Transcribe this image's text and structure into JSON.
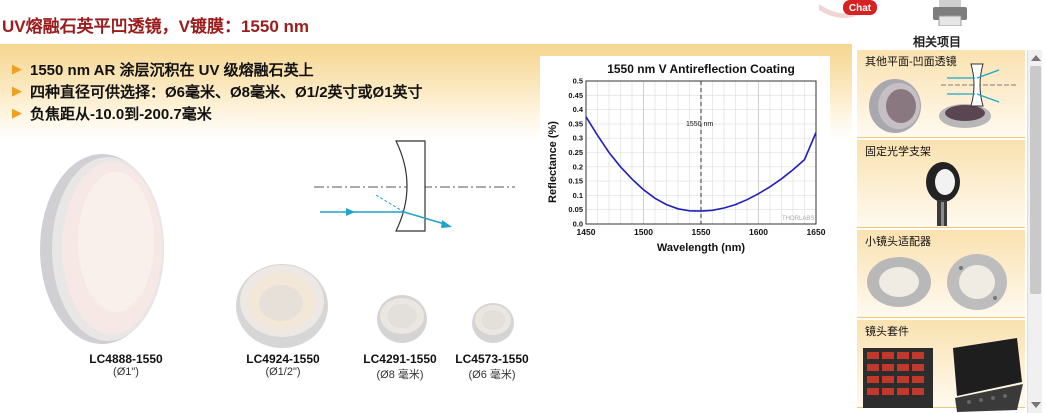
{
  "page": {
    "title": "UV熔融石英平凹透镜，V镀膜：1550 nm",
    "chat_label": "Chat",
    "related_label": "相关项目"
  },
  "features": [
    "1550 nm AR 涂层沉积在 UV 级熔融石英上",
    "四种直径可供选择：Ø6毫米、Ø8毫米、Ø1/2英寸或Ø1英寸",
    "负焦距从-10.0到-200.7毫米"
  ],
  "products": [
    {
      "name": "LC4888-1550",
      "size": "(Ø1\")"
    },
    {
      "name": "LC4924-1550",
      "size": "(Ø1/2\")"
    },
    {
      "name": "LC4291-1550",
      "size": "(Ø8 毫米)"
    },
    {
      "name": "LC4573-1550",
      "size": "(Ø6 毫米)"
    }
  ],
  "sidebar": {
    "items": [
      {
        "label": "其他平面-凹面透镜"
      },
      {
        "label": "固定光学支架"
      },
      {
        "label": "小镜头适配器"
      },
      {
        "label": "镜头套件"
      }
    ]
  },
  "chart_data": {
    "type": "line",
    "title": "1550 nm V Antireflection Coating",
    "xlabel": "Wavelength (nm)",
    "ylabel": "Reflectance (%)",
    "xlim": [
      1450,
      1650
    ],
    "ylim": [
      0,
      0.5
    ],
    "xticks": [
      1450,
      1500,
      1550,
      1600,
      1650
    ],
    "yticks": [
      0.0,
      0.05,
      0.1,
      0.15,
      0.2,
      0.25,
      0.3,
      0.35,
      0.4,
      0.45,
      0.5
    ],
    "grid": true,
    "annotation": "1550 nm",
    "annotation_x": 1550,
    "logo_text": "THORLABS",
    "series": [
      {
        "color": "#1f1fbf",
        "x": [
          1450,
          1460,
          1470,
          1480,
          1490,
          1500,
          1510,
          1520,
          1530,
          1540,
          1550,
          1560,
          1570,
          1580,
          1590,
          1600,
          1610,
          1620,
          1630,
          1640,
          1650
        ],
        "y": [
          0.375,
          0.31,
          0.25,
          0.2,
          0.157,
          0.12,
          0.09,
          0.068,
          0.053,
          0.046,
          0.045,
          0.048,
          0.056,
          0.068,
          0.085,
          0.106,
          0.13,
          0.158,
          0.19,
          0.225,
          0.32
        ]
      }
    ]
  }
}
